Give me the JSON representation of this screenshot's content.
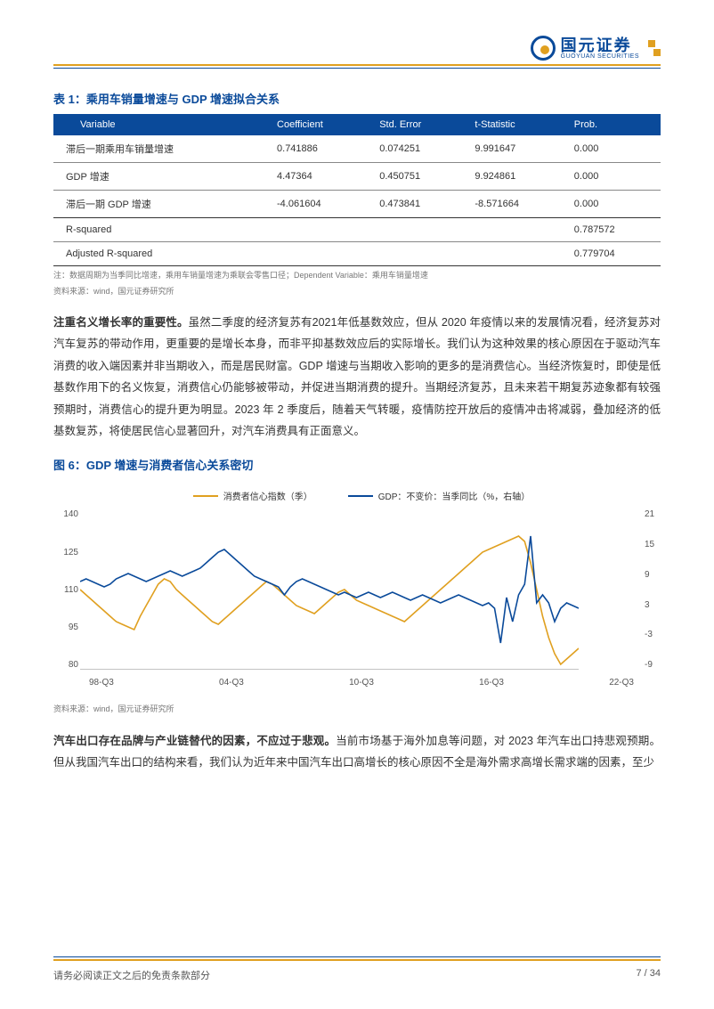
{
  "brand": {
    "cn": "国元证券",
    "en": "GUOYUAN SECURITIES"
  },
  "table": {
    "title": "表 1：乘用车销量增速与 GDP 增速拟合关系",
    "headers": [
      "Variable",
      "Coefficient",
      "Std. Error",
      "t-Statistic",
      "Prob."
    ],
    "rows": [
      [
        "滞后一期乘用车销量增速",
        "0.741886",
        "0.074251",
        "9.991647",
        "0.000"
      ],
      [
        "GDP 增速",
        "4.47364",
        "0.450751",
        "9.924861",
        "0.000"
      ],
      [
        "滞后一期 GDP 增速",
        "-4.061604",
        "0.473841",
        "-8.571664",
        "0.000"
      ]
    ],
    "stats": [
      [
        "R-squared",
        "",
        "",
        "",
        "0.787572"
      ],
      [
        "Adjusted R-squared",
        "",
        "",
        "",
        "0.779704"
      ]
    ],
    "note1": "注：数据周期为当季同比增速，乘用车销量增速为乘联会零售口径；Dependent Variable：乘用车销量增速",
    "note2": "资料来源：wind，国元证券研究所"
  },
  "para1": {
    "bold": "注重名义增长率的重要性。",
    "text": "虽然二季度的经济复苏有2021年低基数效应，但从 2020 年疫情以来的发展情况看，经济复苏对汽车复苏的带动作用，更重要的是增长本身，而非平抑基数效应后的实际增长。我们认为这种效果的核心原因在于驱动汽车消费的收入端因素并非当期收入，而是居民财富。GDP 增速与当期收入影响的更多的是消费信心。当经济恢复时，即使是低基数作用下的名义恢复，消费信心仍能够被带动，并促进当期消费的提升。当期经济复苏，且未来若干期复苏迹象都有较强预期时，消费信心的提升更为明显。2023 年 2 季度后，随着天气转暖，疫情防控开放后的疫情冲击将减弱，叠加经济的低基数复苏，将使居民信心显著回升，对汽车消费具有正面意义。"
  },
  "chart": {
    "title": "图 6：GDP 增速与消费者信心关系密切",
    "legend1": "消费者信心指数（季）",
    "legend2": "GDP：不变价：当季同比（%，右轴）",
    "color1": "#e0a020",
    "color2": "#0a4a9a",
    "y_left": [
      "140",
      "125",
      "110",
      "95",
      "80"
    ],
    "y_right": [
      "21",
      "15",
      "9",
      "3",
      "-3",
      "-9"
    ],
    "x_labels": [
      "98-Q3",
      "04-Q3",
      "10-Q3",
      "16-Q3",
      "22-Q3"
    ],
    "series1": [
      110,
      108,
      106,
      104,
      102,
      100,
      98,
      97,
      96,
      95,
      100,
      104,
      108,
      112,
      114,
      113,
      110,
      108,
      106,
      104,
      102,
      100,
      98,
      97,
      99,
      101,
      103,
      105,
      107,
      109,
      111,
      113,
      112,
      110,
      108,
      106,
      104,
      103,
      102,
      101,
      103,
      105,
      107,
      109,
      110,
      108,
      106,
      105,
      104,
      103,
      102,
      101,
      100,
      99,
      98,
      100,
      102,
      104,
      106,
      108,
      110,
      112,
      114,
      116,
      118,
      120,
      122,
      124,
      125,
      126,
      127,
      128,
      129,
      130,
      128,
      120,
      110,
      100,
      92,
      86,
      82,
      84,
      86,
      88
    ],
    "series2": [
      113,
      114,
      113,
      112,
      111,
      112,
      114,
      115,
      116,
      115,
      114,
      113,
      114,
      115,
      116,
      117,
      116,
      115,
      116,
      117,
      118,
      120,
      122,
      124,
      125,
      123,
      121,
      119,
      117,
      115,
      114,
      113,
      112,
      111,
      108,
      111,
      113,
      114,
      113,
      112,
      111,
      110,
      109,
      108,
      109,
      108,
      107,
      108,
      109,
      108,
      107,
      108,
      109,
      108,
      107,
      106,
      107,
      108,
      107,
      106,
      105,
      106,
      107,
      108,
      107,
      106,
      105,
      104,
      105,
      103,
      90,
      107,
      98,
      108,
      112,
      130,
      105,
      108,
      105,
      98,
      103,
      105,
      104,
      103
    ],
    "note": "资料来源：wind，国元证券研究所"
  },
  "para2": {
    "bold": "汽车出口存在品牌与产业链替代的因素，不应过于悲观。",
    "text": "当前市场基于海外加息等问题，对 2023 年汽车出口持悲观预期。但从我国汽车出口的结构来看，我们认为近年来中国汽车出口高增长的核心原因不全是海外需求高增长需求端的因素，至少"
  },
  "footer": {
    "left": "请务必阅读正文之后的免责条款部分",
    "right": "7 / 34"
  }
}
